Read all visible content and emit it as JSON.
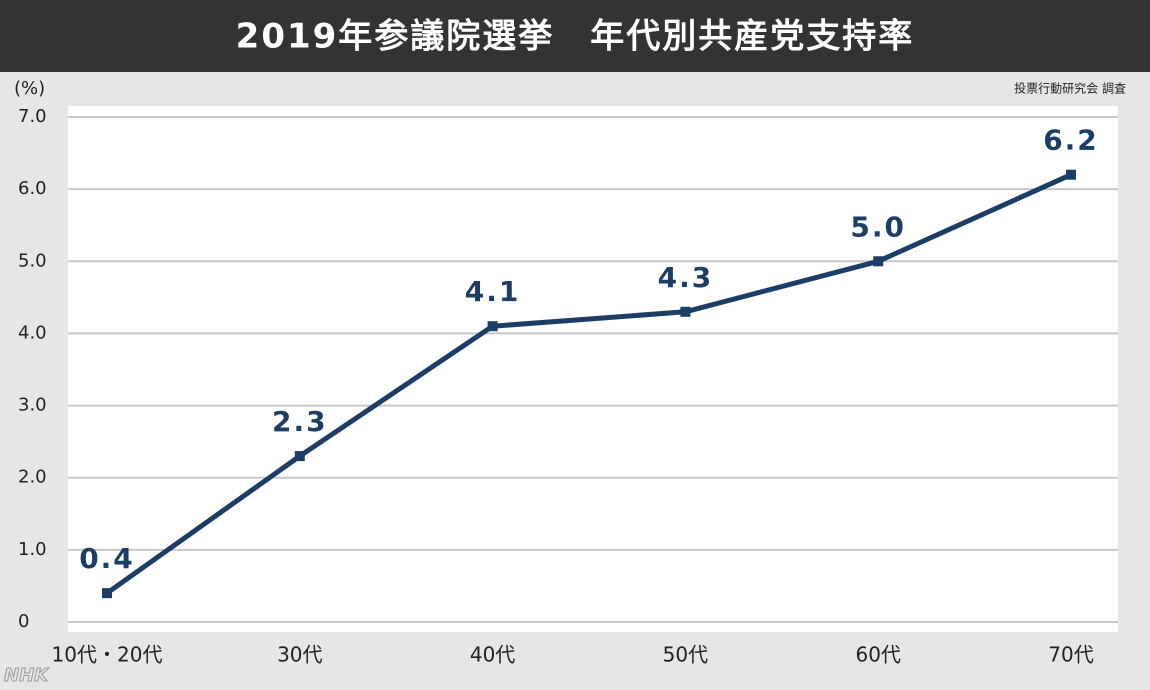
{
  "chart_data": {
    "type": "line",
    "title": "2019年参議院選挙　年代別共産党支持率",
    "y_label": "(%)",
    "source": "投票行動研究会 調査",
    "logo": "NHK",
    "categories": [
      "10代・20代",
      "30代",
      "40代",
      "50代",
      "60代",
      "70代"
    ],
    "values": [
      0.4,
      2.3,
      4.1,
      4.3,
      5,
      6.2
    ],
    "value_labels": [
      "0.4",
      "2.3",
      "4.1",
      "4.3",
      "5.0",
      "6.2"
    ],
    "color": "#1c3d66",
    "ylim": [
      0,
      7
    ],
    "yticks": [
      0,
      {
        "value": 1,
        "label": "1.0"
      },
      {
        "value": 2,
        "label": "2.0"
      },
      {
        "value": 3,
        "label": "3.0"
      },
      {
        "value": 4,
        "label": "4.0"
      },
      {
        "value": 5,
        "label": "5.0"
      },
      {
        "value": 6,
        "label": "6.0"
      },
      {
        "value": 7,
        "label": "7.0"
      }
    ],
    "grid": true
  }
}
